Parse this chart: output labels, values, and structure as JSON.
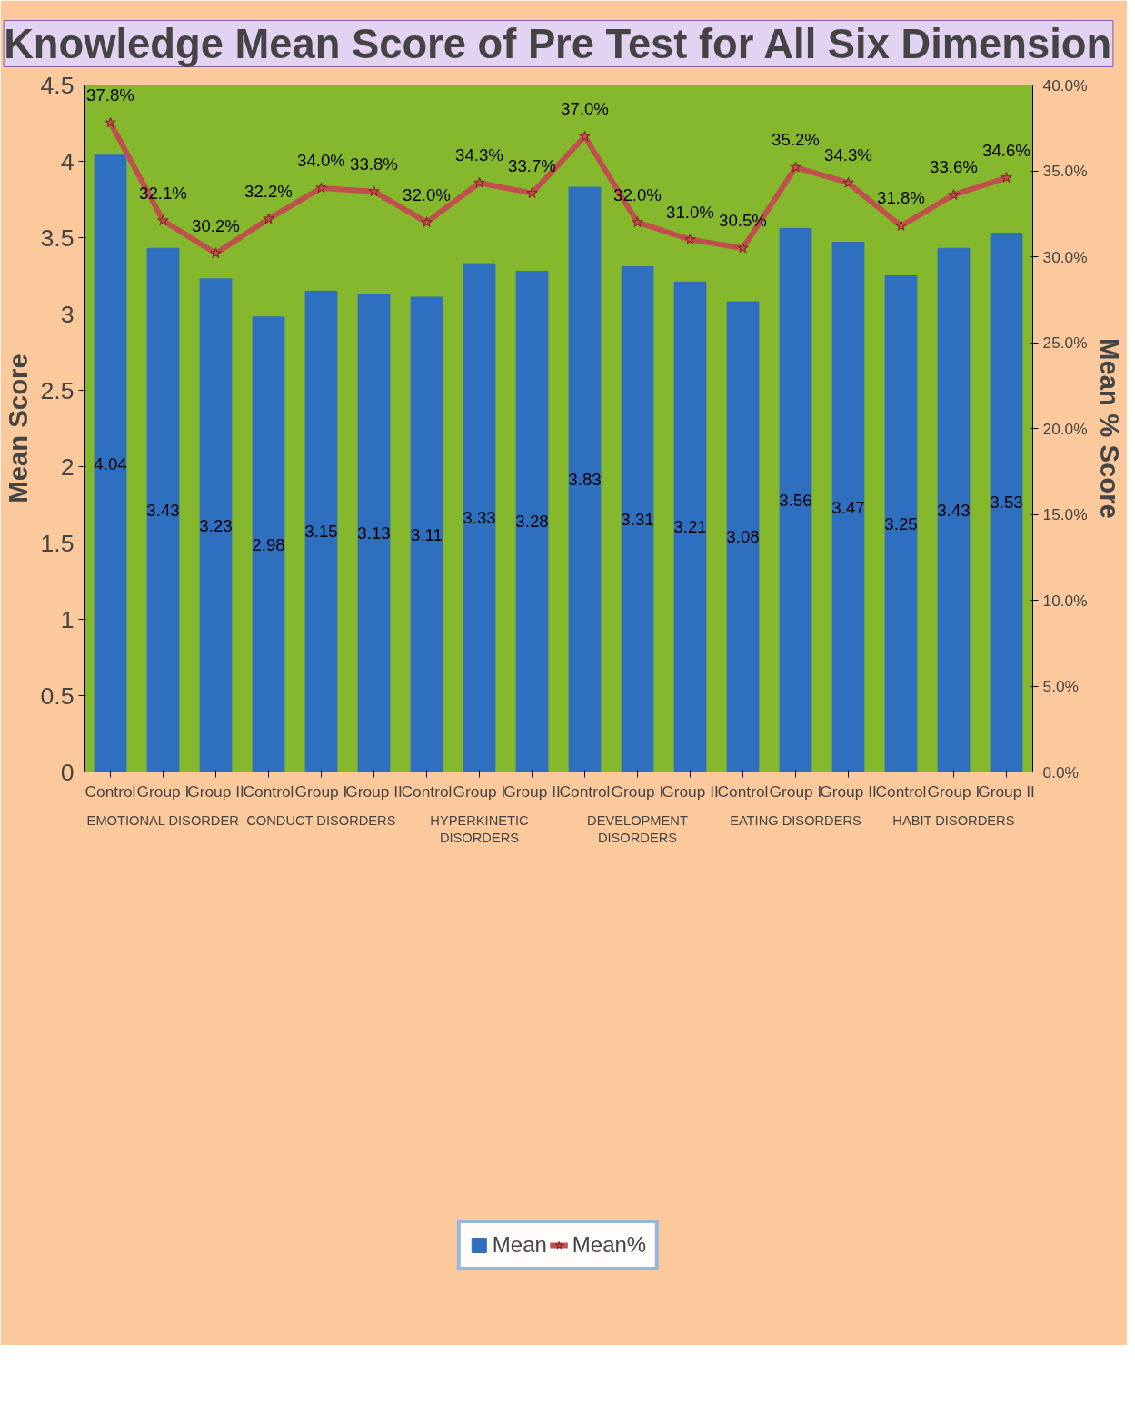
{
  "chart_data": {
    "type": "bar",
    "title": "Knowledge Mean Score of Pre Test for All Six Dimension",
    "ylabel": "Mean Score",
    "y2label": "Mean % Score",
    "categories": [
      "Control",
      "Group I",
      "Group II",
      "Control",
      "Group I",
      "Group II",
      "Control",
      "Group I",
      "Group II",
      "Control",
      "Group I",
      "Group II",
      "Control",
      "Group I",
      "Group II",
      "Control",
      "Group I",
      "Group II"
    ],
    "annotations": [
      "EMOTIONAL DISORDER",
      "CONDUCT DISORDERS",
      "HYPERKINETIC DISORDERS",
      "DEVELOPMENT DISORDERS",
      "EATING DISORDERS",
      "HABIT DISORDERS"
    ],
    "series": [
      {
        "name": "Mean",
        "color": "#2f6fc0",
        "values": [
          4.04,
          3.43,
          3.23,
          2.98,
          3.15,
          3.13,
          3.11,
          3.33,
          3.28,
          3.83,
          3.31,
          3.21,
          3.08,
          3.56,
          3.47,
          3.25,
          3.43,
          3.53
        ],
        "value_labels": [
          "4.04",
          "3.43",
          "3.23",
          "2.98",
          "3.15",
          "3.13",
          "3.11",
          "3.33",
          "3.28",
          "3.83",
          "3.31",
          "3.21",
          "3.08",
          "3.56",
          "3.47",
          "3.25",
          "3.43",
          "3.53"
        ]
      },
      {
        "name": "Mean%",
        "type": "line",
        "axis": "y2",
        "color": "#c0504d",
        "marker": "star",
        "values": [
          37.8,
          32.1,
          30.2,
          32.2,
          34.0,
          33.8,
          32.0,
          34.3,
          33.7,
          37.0,
          32.0,
          31.0,
          30.5,
          35.2,
          34.3,
          31.8,
          33.6,
          34.6
        ],
        "value_labels": [
          "37.8%",
          "32.1%",
          "30.2%",
          "32.2%",
          "34.0%",
          "33.8%",
          "32.0%",
          "34.3%",
          "33.7%",
          "37.0%",
          "32.0%",
          "31.0%",
          "30.5%",
          "35.2%",
          "34.3%",
          "31.8%",
          "33.6%",
          "34.6%"
        ]
      }
    ],
    "ylim": [
      0,
      4.5
    ],
    "yticks": [
      0,
      0.5,
      1,
      1.5,
      2,
      2.5,
      3,
      3.5,
      4,
      4.5
    ],
    "y2lim": [
      0,
      40
    ],
    "y2ticks": [
      {
        "value": 0,
        "label": "0.0%"
      },
      {
        "value": 5,
        "label": "5.0%"
      },
      {
        "value": 10,
        "label": "10.0%"
      },
      {
        "value": 15,
        "label": "15.0%"
      },
      {
        "value": 20,
        "label": "20.0%"
      },
      {
        "value": 25,
        "label": "25.0%"
      },
      {
        "value": 30,
        "label": "30.0%"
      },
      {
        "value": 35,
        "label": "35.0%"
      },
      {
        "value": 40,
        "label": "40.0%"
      }
    ],
    "legend": "bottom",
    "grid": false
  }
}
